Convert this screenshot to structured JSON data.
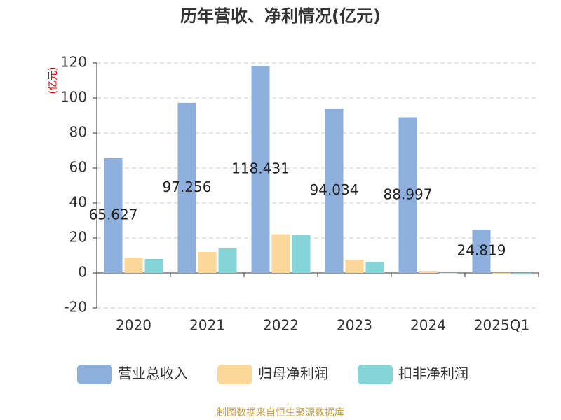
{
  "chart_data": {
    "type": "bar",
    "title": "历年营收、净利情况(亿元)",
    "y_label": "(亿元)",
    "categories": [
      "2020",
      "2021",
      "2022",
      "2023",
      "2024",
      "2025Q1"
    ],
    "series": [
      {
        "name": "营业总收入",
        "color": "#8eaedc",
        "values": [
          65.627,
          97.256,
          118.431,
          94.034,
          88.997,
          24.819
        ],
        "show_labels": true
      },
      {
        "name": "归母净利润",
        "color": "#fdd79a",
        "values": [
          8.8,
          12.0,
          22.2,
          7.6,
          1.2,
          -0.6
        ]
      },
      {
        "name": "扣非净利润",
        "color": "#85d5d8",
        "values": [
          8.0,
          14.0,
          21.6,
          6.4,
          -0.2,
          -0.9
        ]
      }
    ],
    "ylim": [
      -20,
      120
    ],
    "yticks": [
      -20,
      0,
      20,
      40,
      60,
      80,
      100,
      120
    ],
    "grid": true,
    "source": "制图数据来自恒生聚源数据库"
  }
}
